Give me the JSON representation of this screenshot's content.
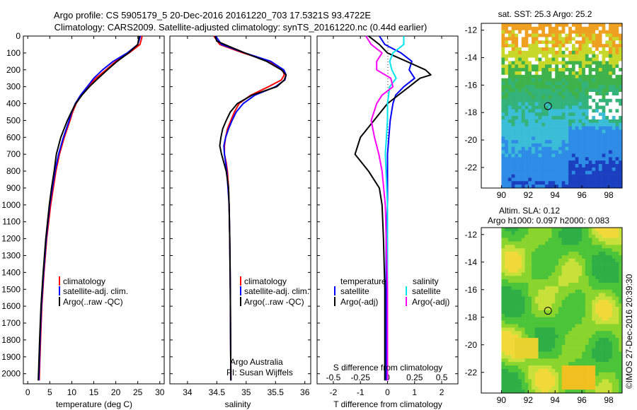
{
  "header": {
    "line1": "Argo profile: CS 5905179_5 20-Dec-2016 20161220_703 17.5321S 93.4722E",
    "line2": "Climatology: CARS2009. Satellite-adjusted climatology: synTS_20161220.nc (0.44d earlier)"
  },
  "colors": {
    "climatology": "#ff0000",
    "satellite": "#0000ff",
    "argo": "#000000",
    "salinity_satellite": "#00e5ee",
    "salinity_argo": "#ff00ff"
  },
  "depth_axis": {
    "ticks": [
      0,
      100,
      200,
      300,
      400,
      500,
      600,
      700,
      800,
      900,
      1000,
      1100,
      1200,
      1300,
      1400,
      1500,
      1600,
      1700,
      1800,
      1900,
      2000
    ],
    "tick_labels": [
      "0",
      "100",
      "200",
      "300",
      "400",
      "500",
      "600",
      "700",
      "800",
      "900",
      "1000",
      "1100",
      "1200",
      "1300",
      "1400",
      "1500",
      "1600",
      "1700",
      "1800",
      "1900",
      "2000"
    ],
    "range": [
      0,
      2060
    ]
  },
  "chart_data": [
    {
      "type": "line",
      "name": "temperature-panel",
      "xlabel": "temperature (deg C)",
      "xlim": [
        -1,
        31
      ],
      "ylim": [
        2060,
        0
      ],
      "x_ticks": [
        0,
        5,
        10,
        15,
        20,
        25,
        30
      ],
      "x_tick_labels": [
        "0",
        "5",
        "10",
        "15",
        "20",
        "25",
        "30"
      ],
      "legend": {
        "placement": "center",
        "entries": [
          "climatology",
          "satellite-adj. clim.",
          "Argo(..raw -QC)"
        ]
      },
      "series": [
        {
          "name": "climatology",
          "color_key": "climatology",
          "depth": [
            0,
            50,
            100,
            150,
            200,
            250,
            300,
            350,
            400,
            450,
            500,
            600,
            700,
            800,
            900,
            1000,
            1200,
            1400,
            1600,
            1800,
            2040
          ],
          "values": [
            26.0,
            25.5,
            23.0,
            20.0,
            17.8,
            15.5,
            13.6,
            12.2,
            11.0,
            10.2,
            9.6,
            8.3,
            7.2,
            6.4,
            5.8,
            5.2,
            4.3,
            3.7,
            3.2,
            2.9,
            2.6
          ]
        },
        {
          "name": "satellite-adj. clim.",
          "color_key": "satellite",
          "depth": [
            0,
            50,
            100,
            150,
            200,
            250,
            300,
            350,
            400,
            450,
            500,
            600,
            700,
            800,
            900,
            1000,
            1200,
            1400,
            1600,
            1800,
            2040
          ],
          "values": [
            25.6,
            25.0,
            22.6,
            19.4,
            17.0,
            15.0,
            13.5,
            12.0,
            10.8,
            10.0,
            9.4,
            8.1,
            7.0,
            6.2,
            5.6,
            5.0,
            4.2,
            3.6,
            3.1,
            2.8,
            2.5
          ]
        },
        {
          "name": "Argo(..raw -QC)",
          "color_key": "argo",
          "depth": [
            0,
            50,
            100,
            150,
            200,
            250,
            300,
            350,
            400,
            450,
            500,
            600,
            700,
            800,
            900,
            1000,
            1200,
            1400,
            1600,
            1800,
            2040
          ],
          "values": [
            25.3,
            25.0,
            22.9,
            20.3,
            18.1,
            16.0,
            14.0,
            12.3,
            10.9,
            9.9,
            9.0,
            7.5,
            6.5,
            6.0,
            5.4,
            4.9,
            4.1,
            3.5,
            3.0,
            2.7,
            2.4
          ]
        }
      ]
    },
    {
      "type": "line",
      "name": "salinity-panel",
      "xlabel": "salinity",
      "xlim": [
        33.7,
        36.1
      ],
      "ylim": [
        2060,
        0
      ],
      "x_ticks": [
        34,
        34.5,
        35,
        35.5,
        36
      ],
      "x_tick_labels": [
        "34",
        "34.5",
        "35",
        "35.5",
        "36"
      ],
      "legend": {
        "placement": "center",
        "entries": [
          "climatology",
          "satellite-adj. clim.",
          "Argo(..raw -QC)"
        ]
      },
      "annotations": [
        "Argo Australia",
        "PI: Susan Wijffels"
      ],
      "series": [
        {
          "name": "climatology",
          "color_key": "climatology",
          "depth": [
            0,
            50,
            100,
            150,
            200,
            230,
            260,
            300,
            350,
            400,
            450,
            500,
            550,
            600,
            650,
            700,
            750,
            800,
            900,
            1000,
            1200,
            1500,
            1800,
            2040
          ],
          "values": [
            34.45,
            34.55,
            34.95,
            35.4,
            35.62,
            35.65,
            35.6,
            35.38,
            35.08,
            34.88,
            34.8,
            34.74,
            34.68,
            34.65,
            34.63,
            34.63,
            34.66,
            34.68,
            34.7,
            34.71,
            34.72,
            34.73,
            34.735,
            34.74
          ]
        },
        {
          "name": "satellite-adj. clim.",
          "color_key": "satellite",
          "depth": [
            0,
            50,
            100,
            150,
            200,
            230,
            260,
            300,
            350,
            400,
            450,
            500,
            550,
            600,
            650,
            700,
            750,
            800,
            900,
            1000,
            1200,
            1500,
            1800,
            2040
          ],
          "values": [
            34.48,
            34.58,
            34.98,
            35.42,
            35.64,
            35.68,
            35.66,
            35.5,
            35.15,
            34.95,
            34.83,
            34.76,
            34.7,
            34.65,
            34.62,
            34.63,
            34.65,
            34.67,
            34.69,
            34.71,
            34.72,
            34.73,
            34.735,
            34.74
          ]
        },
        {
          "name": "Argo(..raw -QC)",
          "color_key": "argo",
          "depth": [
            0,
            30,
            60,
            100,
            150,
            200,
            230,
            260,
            300,
            350,
            400,
            450,
            500,
            550,
            600,
            650,
            700,
            750,
            800,
            850,
            900,
            1000,
            1200,
            1500,
            1800,
            2040
          ],
          "values": [
            34.47,
            34.5,
            34.7,
            34.98,
            35.35,
            35.6,
            35.68,
            35.65,
            35.52,
            35.1,
            34.85,
            34.73,
            34.66,
            34.6,
            34.57,
            34.55,
            34.58,
            34.62,
            34.66,
            34.68,
            34.7,
            34.71,
            34.72,
            34.73,
            34.735,
            34.74
          ]
        }
      ]
    },
    {
      "type": "line",
      "name": "difference-panel",
      "xlabel": "T difference from climatology",
      "xlabel2": "S difference from climatology",
      "xlim": [
        -2.6,
        2.6
      ],
      "ylim": [
        2060,
        0
      ],
      "x_ticks": [
        -2,
        -1,
        0,
        1,
        2
      ],
      "x_tick_labels": [
        "-2",
        "-1",
        "0",
        "1",
        "2"
      ],
      "x2_ticks": [
        -0.5,
        -0.25,
        0,
        0.25,
        0.5
      ],
      "x2_tick_labels": [
        "-0.5",
        "-0.25",
        "0",
        "0.25",
        "0.5"
      ],
      "legend": {
        "temperature_title": "temperature",
        "temperature_entries": [
          "satellite",
          "Argo(-adj)"
        ],
        "salinity_title": "salinity",
        "salinity_entries": [
          "satellite",
          "Argo(-adj)"
        ]
      },
      "series": [
        {
          "name": "temperature satellite",
          "color_key": "satellite",
          "depth": [
            0,
            50,
            100,
            150,
            200,
            250,
            300,
            350,
            400,
            500,
            600,
            700,
            800,
            1000,
            1200,
            1500,
            1800,
            2040
          ],
          "values": [
            -0.3,
            -0.1,
            0.5,
            0.9,
            0.8,
            1.0,
            0.6,
            0.3,
            0.2,
            0.1,
            0.05,
            0.0,
            0.0,
            0.0,
            -0.05,
            -0.05,
            -0.05,
            -0.05
          ]
        },
        {
          "name": "temperature Argo(-adj)",
          "color_key": "argo",
          "depth": [
            0,
            50,
            100,
            150,
            200,
            230,
            250,
            300,
            350,
            400,
            500,
            600,
            700,
            800,
            900,
            1000,
            1200,
            1500,
            1800,
            2040
          ],
          "values": [
            -0.7,
            -0.3,
            0.0,
            0.7,
            1.4,
            1.6,
            1.2,
            0.8,
            0.4,
            0.0,
            -0.5,
            -1.0,
            -1.2,
            -0.7,
            -0.3,
            -0.2,
            -0.15,
            -0.1,
            -0.1,
            -0.1
          ]
        },
        {
          "name": "salinity satellite",
          "color_key": "salinity_satellite",
          "depth": [
            0,
            50,
            100,
            150,
            200,
            250,
            300,
            400,
            500,
            700,
            1000,
            1500,
            2040
          ],
          "values": [
            0.15,
            0.15,
            0.05,
            0.02,
            0.04,
            0.08,
            0.02,
            0.0,
            0.0,
            -0.02,
            0.0,
            0.0,
            0.0
          ]
        },
        {
          "name": "salinity Argo(-adj)",
          "color_key": "salinity_argo",
          "depth": [
            0,
            50,
            100,
            150,
            200,
            250,
            300,
            350,
            400,
            500,
            600,
            700,
            800,
            1000,
            1500,
            2040
          ],
          "values": [
            -0.2,
            -0.15,
            -0.05,
            -0.1,
            -0.1,
            0.03,
            0.05,
            -0.05,
            -0.1,
            -0.15,
            -0.12,
            -0.08,
            -0.05,
            -0.02,
            0.0,
            0.0
          ]
        }
      ]
    },
    {
      "type": "heatmap",
      "name": "sst-map",
      "title": "sat. SST: 25.3  Argo: 25.2",
      "xlim": [
        88.5,
        99
      ],
      "ylim": [
        -23.5,
        -11.5
      ],
      "x_ticks": [
        90,
        92,
        94,
        96,
        98
      ],
      "x_tick_labels": [
        "90",
        "92",
        "94",
        "96",
        "98"
      ],
      "y_ticks": [
        -12,
        -14,
        -16,
        -18,
        -20,
        -22
      ],
      "y_tick_labels": [
        "-12",
        "-14",
        "-16",
        "-18",
        "-20",
        "-22"
      ],
      "data_extent": {
        "lon": [
          90,
          99
        ],
        "lat": [
          -23.5,
          -11.5
        ]
      },
      "marker": {
        "lon": 93.47,
        "lat": -17.53
      }
    },
    {
      "type": "heatmap",
      "name": "sla-map",
      "title": "Altim. SLA: 0.12",
      "subtitle": "Argo h1000: 0.097  h2000: 0.083",
      "xlim": [
        88.5,
        99
      ],
      "ylim": [
        -23.5,
        -11.5
      ],
      "x_ticks": [
        90,
        92,
        94,
        96,
        98
      ],
      "x_tick_labels": [
        "90",
        "92",
        "94",
        "96",
        "98"
      ],
      "y_ticks": [
        -12,
        -14,
        -16,
        -18,
        -20,
        -22
      ],
      "y_tick_labels": [
        "-12",
        "-14",
        "-16",
        "-18",
        "-20",
        "-22"
      ],
      "data_extent": {
        "lon": [
          90,
          99
        ],
        "lat": [
          -23.5,
          -11.5
        ]
      },
      "marker": {
        "lon": 93.47,
        "lat": -17.53
      }
    }
  ],
  "credit": "©IMOS 27-Dec-2016 20:39:30"
}
